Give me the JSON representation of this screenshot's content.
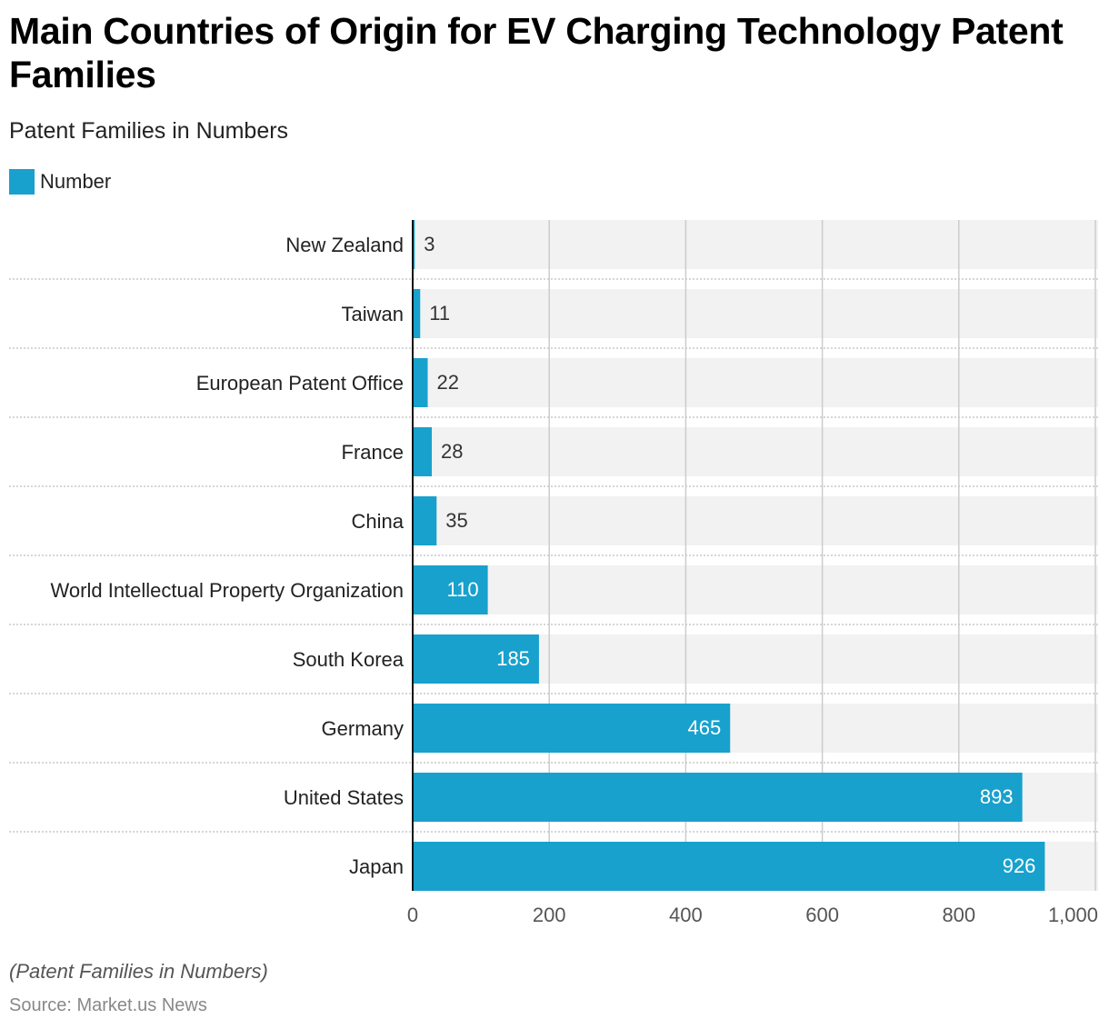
{
  "header": {
    "title": "Main Countries of Origin for EV Charging Technology Patent Families",
    "subtitle": "Patent Families in Numbers"
  },
  "legend": {
    "label": "Number",
    "color": "#18a1cd"
  },
  "footer": {
    "note": "(Patent Families in Numbers)",
    "source": "Source: Market.us News"
  },
  "chart_data": {
    "type": "bar",
    "orientation": "horizontal",
    "title": "Main Countries of Origin for EV Charging Technology Patent Families",
    "subtitle": "Patent Families in Numbers",
    "categories": [
      "New Zealand",
      "Taiwan",
      "European Patent Office",
      "France",
      "China",
      "World Intellectual Property Organization",
      "South Korea",
      "Germany",
      "United States",
      "Japan"
    ],
    "series": [
      {
        "name": "Number",
        "color": "#18a1cd",
        "values": [
          3,
          11,
          22,
          28,
          35,
          110,
          185,
          465,
          893,
          926
        ]
      }
    ],
    "xlabel": "",
    "ylabel": "",
    "xlim": [
      0,
      1000
    ],
    "xticks": [
      0,
      200,
      400,
      600,
      800,
      1000
    ],
    "xtick_labels": [
      "0",
      "200",
      "400",
      "600",
      "800",
      "1,000"
    ],
    "grid": true,
    "legend_position": "top-left"
  }
}
